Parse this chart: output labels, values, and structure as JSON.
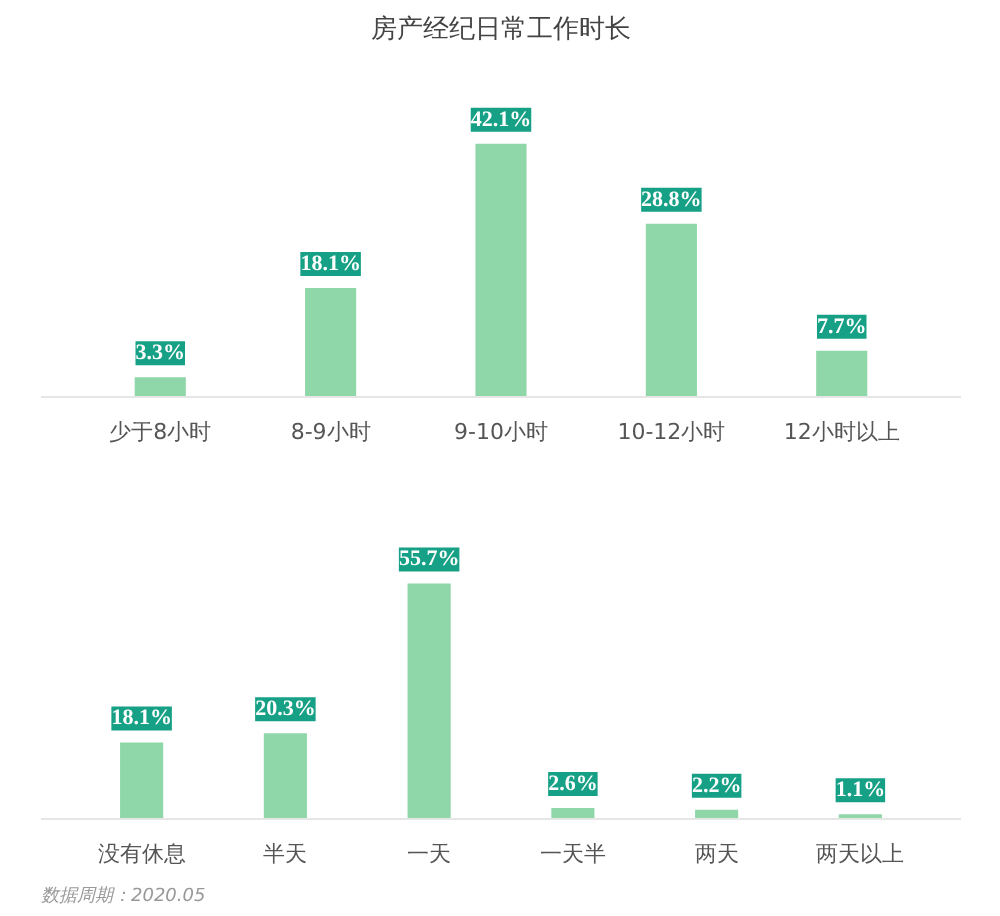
{
  "chart_data": [
    {
      "type": "bar",
      "title": "房产经纪日常工作时长",
      "categories": [
        "少于8小时",
        "8-9小时",
        "9-10小时",
        "10-12小时",
        "12小时以上"
      ],
      "values": [
        3.3,
        18.1,
        42.1,
        28.8,
        7.7
      ],
      "color": "#8fd6a8",
      "value_labels": [
        "3.3%",
        "18.1%",
        "42.1%",
        "28.8%",
        "7.7%"
      ]
    },
    {
      "type": "bar",
      "categories": [
        "没有休息",
        "半天",
        "一天",
        "一天半",
        "两天",
        "两天以上"
      ],
      "values": [
        18.1,
        20.3,
        55.7,
        2.6,
        2.2,
        1.1
      ],
      "color": "#8fd6a8",
      "value_labels": [
        "18.1%",
        "20.3%",
        "55.7%",
        "2.6%",
        "2.2%",
        "1.1%"
      ],
      "annotations": [
        "数据周期：2020.05"
      ]
    }
  ]
}
